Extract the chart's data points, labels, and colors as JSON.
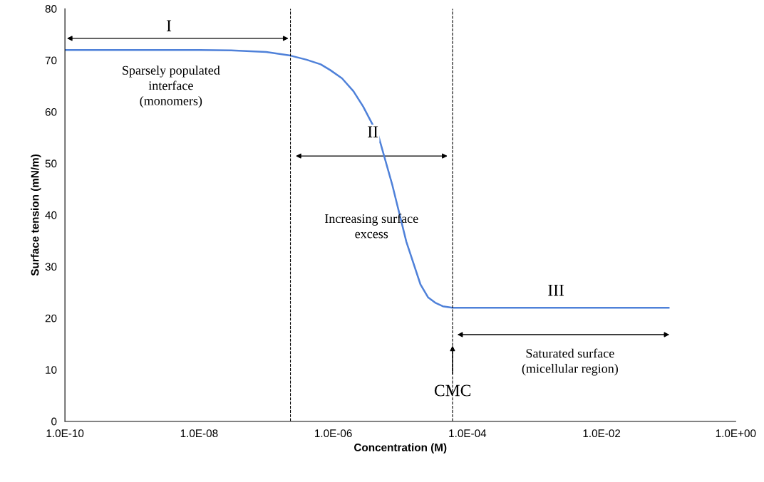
{
  "chart_data": {
    "type": "line",
    "xlabel": "Concentration (M)",
    "ylabel": "Surface tension (mN/m)",
    "log": "x",
    "x": [
      1e-10,
      1e-09,
      1e-08,
      3e-08,
      1e-07,
      2.3e-07,
      4e-07,
      6.5e-07,
      9e-07,
      1.35e-06,
      2e-06,
      2.8e-06,
      4.7e-06,
      7.6e-06,
      1.23e-05,
      2e-05,
      2.6e-05,
      3.3e-05,
      4.3e-05,
      6e-05,
      0.0001,
      0.001,
      0.01,
      0.1
    ],
    "series": [
      {
        "color": "#4f81d9",
        "values": [
          72,
          72,
          72,
          71.9,
          71.6,
          70.9,
          70.1,
          69.2,
          68.1,
          66.5,
          64,
          61,
          55.4,
          45.8,
          34.8,
          26.5,
          24,
          23,
          22.3,
          22,
          22,
          22,
          22,
          22
        ]
      }
    ],
    "xlim": [
      1e-10,
      1
    ],
    "ylim": [
      0,
      80
    ],
    "xticks": [
      {
        "value": 1e-10,
        "label": "1.0E-10"
      },
      {
        "value": 1e-08,
        "label": "1.0E-08"
      },
      {
        "value": 1e-06,
        "label": "1.0E-06"
      },
      {
        "value": 0.0001,
        "label": "1.0E-04"
      },
      {
        "value": 0.01,
        "label": "1.0E-02"
      },
      {
        "value": 1,
        "label": "1.0E+00"
      }
    ],
    "yticks": [
      0,
      10,
      20,
      30,
      40,
      50,
      60,
      70,
      80
    ],
    "grid": false,
    "legend": false,
    "marker": "none",
    "line_style": "solid",
    "ref_lines": [
      {
        "axis": "x",
        "value": 2.3e-07,
        "line_style": "dashed",
        "color": "#000000"
      },
      {
        "axis": "x",
        "value": 6e-05,
        "line_style": "dashed",
        "color": "#000000"
      }
    ],
    "annotations": [
      "I",
      "Sparsely populated\ninterface\n(monomers)",
      "II",
      "Increasing surface\nexcess",
      "III",
      "Saturated surface\n(micellular region)",
      "CMC"
    ]
  }
}
